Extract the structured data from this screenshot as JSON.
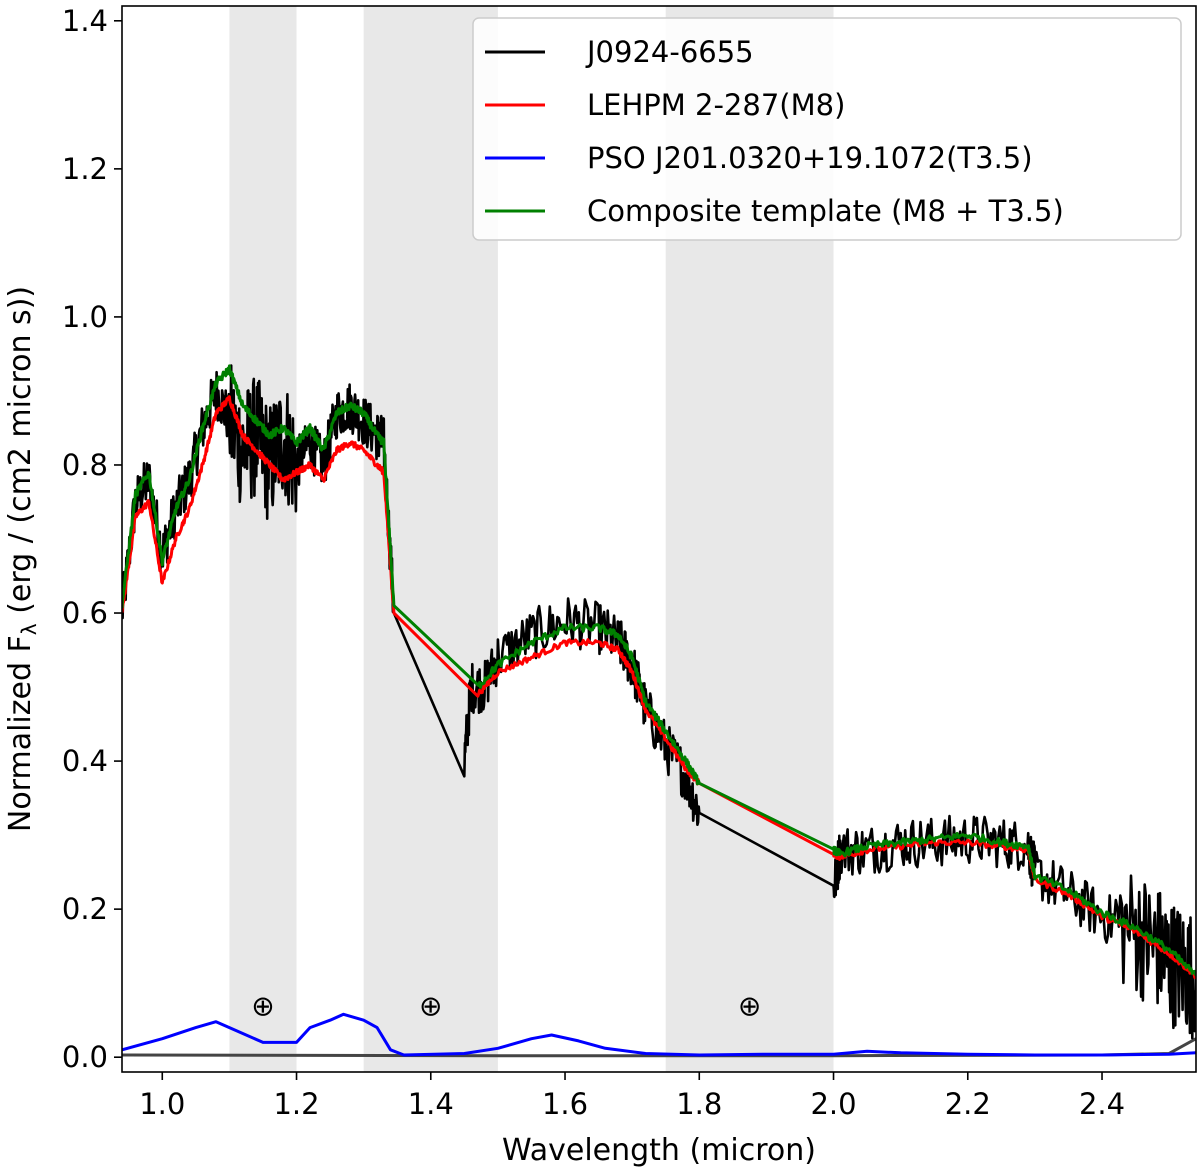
{
  "chart_data": {
    "type": "line",
    "title": "",
    "xlabel": "Wavelength (micron)",
    "ylabel": "Normalized F",
    "ylabel_subscript": "λ",
    "ylabel_unit": " (erg / (cm2 micron s))",
    "xlim": [
      0.94,
      2.54
    ],
    "ylim": [
      -0.02,
      1.42
    ],
    "x_ticks": [
      1.0,
      1.2,
      1.4,
      1.6,
      1.8,
      2.0,
      2.2,
      2.4
    ],
    "x_tick_labels": [
      "1.0",
      "1.2",
      "1.4",
      "1.6",
      "1.8",
      "2.0",
      "2.2",
      "2.4"
    ],
    "y_ticks": [
      0.0,
      0.2,
      0.4,
      0.6,
      0.8,
      1.0,
      1.2,
      1.4
    ],
    "y_tick_labels": [
      "0.0",
      "0.2",
      "0.4",
      "0.6",
      "0.8",
      "1.0",
      "1.2",
      "1.4"
    ],
    "grid": false,
    "legend_position": "top-right",
    "telluric_bands": [
      [
        1.1,
        1.2
      ],
      [
        1.3,
        1.5
      ],
      [
        1.75,
        2.0
      ]
    ],
    "band_color": "#e8e8e8",
    "telluric_marker": {
      "symbol": "⊕",
      "x": [
        1.15,
        1.4,
        1.875
      ],
      "y": 0.07
    },
    "series": [
      {
        "name": "J0924-6655",
        "color": "#000000",
        "noise": 0.035,
        "x": [
          0.94,
          0.96,
          0.98,
          1.0,
          1.02,
          1.04,
          1.06,
          1.08,
          1.1,
          1.12,
          1.14,
          1.16,
          1.18,
          1.2,
          1.22,
          1.24,
          1.26,
          1.28,
          1.3,
          1.32,
          1.33,
          1.345,
          1.45,
          1.46,
          1.48,
          1.5,
          1.55,
          1.6,
          1.65,
          1.68,
          1.7,
          1.72,
          1.75,
          1.78,
          1.8,
          2.0,
          2.01,
          2.05,
          2.1,
          2.15,
          2.2,
          2.25,
          2.29,
          2.3,
          2.35,
          2.4,
          2.45,
          2.48,
          2.5,
          2.52,
          2.54
        ],
        "values": [
          0.6,
          0.75,
          0.78,
          0.68,
          0.74,
          0.78,
          0.85,
          0.9,
          0.86,
          0.82,
          0.84,
          0.8,
          0.84,
          0.8,
          0.83,
          0.8,
          0.87,
          0.88,
          0.86,
          0.84,
          0.83,
          0.6,
          0.4,
          0.5,
          0.5,
          0.54,
          0.57,
          0.59,
          0.58,
          0.56,
          0.53,
          0.47,
          0.42,
          0.38,
          0.33,
          0.225,
          0.28,
          0.28,
          0.29,
          0.29,
          0.295,
          0.29,
          0.285,
          0.25,
          0.22,
          0.19,
          0.17,
          0.15,
          0.13,
          0.12,
          0.11
        ]
      },
      {
        "name": "LEHPM 2-287(M8)",
        "color": "#ff0000",
        "noise": 0.004,
        "x": [
          0.94,
          0.96,
          0.98,
          1.0,
          1.02,
          1.04,
          1.06,
          1.08,
          1.1,
          1.12,
          1.14,
          1.16,
          1.18,
          1.2,
          1.22,
          1.24,
          1.26,
          1.28,
          1.3,
          1.32,
          1.33,
          1.345,
          1.47,
          1.5,
          1.55,
          1.6,
          1.65,
          1.68,
          1.7,
          1.72,
          1.75,
          1.78,
          1.8,
          2.0,
          2.01,
          2.05,
          2.1,
          2.15,
          2.2,
          2.25,
          2.29,
          2.3,
          2.35,
          2.4,
          2.45,
          2.5,
          2.54
        ],
        "values": [
          0.6,
          0.73,
          0.75,
          0.64,
          0.7,
          0.74,
          0.8,
          0.87,
          0.89,
          0.84,
          0.82,
          0.8,
          0.78,
          0.79,
          0.8,
          0.78,
          0.82,
          0.83,
          0.82,
          0.8,
          0.79,
          0.6,
          0.49,
          0.52,
          0.54,
          0.56,
          0.56,
          0.55,
          0.52,
          0.47,
          0.43,
          0.39,
          0.37,
          0.275,
          0.27,
          0.28,
          0.285,
          0.29,
          0.29,
          0.285,
          0.28,
          0.24,
          0.22,
          0.19,
          0.17,
          0.14,
          0.11
        ]
      },
      {
        "name": "PSO J201.0320+19.1072(T3.5)",
        "color": "#0000ff",
        "noise": 0.0,
        "x": [
          0.94,
          1.0,
          1.05,
          1.08,
          1.1,
          1.15,
          1.2,
          1.22,
          1.25,
          1.27,
          1.3,
          1.32,
          1.34,
          1.36,
          1.45,
          1.5,
          1.55,
          1.58,
          1.62,
          1.66,
          1.72,
          1.8,
          1.9,
          2.0,
          2.05,
          2.1,
          2.2,
          2.3,
          2.4,
          2.5,
          2.54
        ],
        "values": [
          0.01,
          0.025,
          0.04,
          0.048,
          0.04,
          0.02,
          0.02,
          0.04,
          0.05,
          0.058,
          0.05,
          0.04,
          0.01,
          0.003,
          0.005,
          0.012,
          0.025,
          0.03,
          0.022,
          0.012,
          0.005,
          0.003,
          0.004,
          0.004,
          0.008,
          0.006,
          0.004,
          0.003,
          0.003,
          0.004,
          0.006
        ]
      },
      {
        "name": "Composite template (M8 + T3.5)",
        "color": "#008000",
        "noise": 0.005,
        "x": [
          0.94,
          0.96,
          0.98,
          1.0,
          1.02,
          1.04,
          1.06,
          1.08,
          1.1,
          1.12,
          1.14,
          1.16,
          1.18,
          1.2,
          1.22,
          1.24,
          1.26,
          1.28,
          1.3,
          1.32,
          1.33,
          1.345,
          1.47,
          1.5,
          1.55,
          1.6,
          1.65,
          1.68,
          1.7,
          1.72,
          1.75,
          1.78,
          1.8,
          2.0,
          2.01,
          2.05,
          2.1,
          2.15,
          2.2,
          2.25,
          2.29,
          2.3,
          2.35,
          2.4,
          2.45,
          2.5,
          2.54
        ],
        "values": [
          0.61,
          0.76,
          0.79,
          0.67,
          0.74,
          0.78,
          0.85,
          0.91,
          0.93,
          0.88,
          0.86,
          0.84,
          0.85,
          0.83,
          0.85,
          0.82,
          0.87,
          0.88,
          0.87,
          0.84,
          0.83,
          0.61,
          0.5,
          0.53,
          0.56,
          0.58,
          0.58,
          0.57,
          0.54,
          0.48,
          0.44,
          0.4,
          0.37,
          0.28,
          0.275,
          0.285,
          0.29,
          0.295,
          0.3,
          0.29,
          0.285,
          0.245,
          0.225,
          0.195,
          0.175,
          0.145,
          0.11
        ]
      },
      {
        "name": "",
        "color": "#444444",
        "noise": 0.0,
        "x": [
          0.94,
          1.5,
          2.0,
          2.4,
          2.5,
          2.52,
          2.54
        ],
        "values": [
          0.003,
          0.002,
          0.002,
          0.003,
          0.005,
          0.015,
          0.025
        ]
      }
    ]
  }
}
